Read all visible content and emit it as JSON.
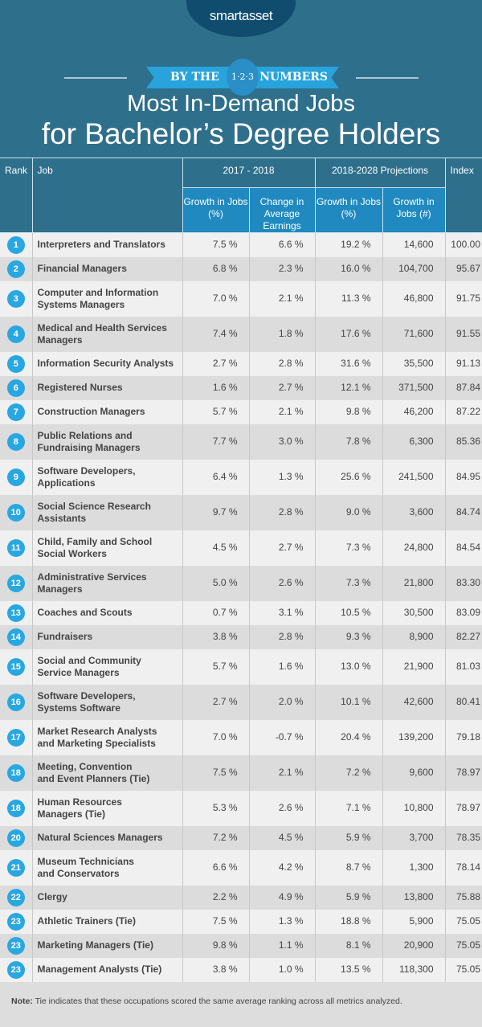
{
  "brand": {
    "logo_text": "smartasset",
    "accent": "#29a7e1",
    "header_bg": "#2089bf",
    "top_bg": "#2e6f8c"
  },
  "banner": {
    "left": "BY THE",
    "badge": "1·2·3",
    "right": "NUMBERS"
  },
  "title": {
    "line1": "Most In-Demand Jobs",
    "line2": "for Bachelor’s Degree Holders"
  },
  "table": {
    "headers": {
      "rank": "Rank",
      "job": "Job",
      "group1": "2017 - 2018",
      "group2": "2018-2028 Projections",
      "index": "Index",
      "c1": "Growth in Jobs (%)",
      "c2": "Change in Average Earnings",
      "c3": "Growth in Jobs (%)",
      "c4": "Growth in Jobs (#)"
    },
    "rows": [
      {
        "rank": "1",
        "job": "Interpreters and Translators",
        "c1": "7.5 %",
        "c2": "6.6 %",
        "c3": "19.2 %",
        "c4": "14,600",
        "index": "100.00"
      },
      {
        "rank": "2",
        "job": "Financial Managers",
        "c1": "6.8 %",
        "c2": "2.3 %",
        "c3": "16.0 %",
        "c4": "104,700",
        "index": "95.67"
      },
      {
        "rank": "3",
        "job": "Computer and Information\nSystems Managers",
        "c1": "7.0 %",
        "c2": "2.1 %",
        "c3": "11.3 %",
        "c4": "46,800",
        "index": "91.75"
      },
      {
        "rank": "4",
        "job": "Medical and Health Services\nManagers",
        "c1": "7.4 %",
        "c2": "1.8 %",
        "c3": "17.6 %",
        "c4": "71,600",
        "index": "91.55"
      },
      {
        "rank": "5",
        "job": "Information Security Analysts",
        "c1": "2.7 %",
        "c2": "2.8 %",
        "c3": "31.6 %",
        "c4": "35,500",
        "index": "91.13"
      },
      {
        "rank": "6",
        "job": "Registered Nurses",
        "c1": "1.6 %",
        "c2": "2.7 %",
        "c3": "12.1 %",
        "c4": "371,500",
        "index": "87.84"
      },
      {
        "rank": "7",
        "job": "Construction Managers",
        "c1": "5.7 %",
        "c2": "2.1 %",
        "c3": "9.8 %",
        "c4": "46,200",
        "index": "87.22"
      },
      {
        "rank": "8",
        "job": "Public Relations and\nFundraising Managers",
        "c1": "7.7 %",
        "c2": "3.0 %",
        "c3": "7.8 %",
        "c4": "6,300",
        "index": "85.36"
      },
      {
        "rank": "9",
        "job": "Software Developers,\nApplications",
        "c1": "6.4 %",
        "c2": "1.3 %",
        "c3": "25.6 %",
        "c4": "241,500",
        "index": "84.95"
      },
      {
        "rank": "10",
        "job": "Social Science Research\nAssistants",
        "c1": "9.7 %",
        "c2": "2.8 %",
        "c3": "9.0 %",
        "c4": "3,600",
        "index": "84.74"
      },
      {
        "rank": "11",
        "job": "Child, Family and School\nSocial Workers",
        "c1": "4.5 %",
        "c2": "2.7 %",
        "c3": "7.3 %",
        "c4": "24,800",
        "index": "84.54"
      },
      {
        "rank": "12",
        "job": "Administrative Services\nManagers",
        "c1": "5.0 %",
        "c2": "2.6 %",
        "c3": "7.3 %",
        "c4": "21,800",
        "index": "83.30"
      },
      {
        "rank": "13",
        "job": "Coaches and Scouts",
        "c1": "0.7 %",
        "c2": "3.1 %",
        "c3": "10.5 %",
        "c4": "30,500",
        "index": "83.09"
      },
      {
        "rank": "14",
        "job": "Fundraisers",
        "c1": "3.8 %",
        "c2": "2.8 %",
        "c3": "9.3 %",
        "c4": "8,900",
        "index": "82.27"
      },
      {
        "rank": "15",
        "job": "Social and Community\nService Managers",
        "c1": "5.7 %",
        "c2": "1.6 %",
        "c3": "13.0 %",
        "c4": "21,900",
        "index": "81.03"
      },
      {
        "rank": "16",
        "job": "Software Developers,\nSystems Software",
        "c1": "2.7 %",
        "c2": "2.0 %",
        "c3": "10.1 %",
        "c4": "42,600",
        "index": "80.41"
      },
      {
        "rank": "17",
        "job": "Market Research Analysts\nand Marketing Specialists",
        "c1": "7.0 %",
        "c2": "-0.7 %",
        "c3": "20.4 %",
        "c4": "139,200",
        "index": "79.18"
      },
      {
        "rank": "18",
        "job": "Meeting, Convention\nand Event Planners (Tie)",
        "c1": "7.5 %",
        "c2": "2.1 %",
        "c3": "7.2 %",
        "c4": "9,600",
        "index": "78.97"
      },
      {
        "rank": "18",
        "job": "Human Resources\nManagers (Tie)",
        "c1": "5.3 %",
        "c2": "2.6 %",
        "c3": "7.1 %",
        "c4": "10,800",
        "index": "78.97"
      },
      {
        "rank": "20",
        "job": "Natural Sciences Managers",
        "c1": "7.2 %",
        "c2": "4.5 %",
        "c3": "5.9 %",
        "c4": "3,700",
        "index": "78.35"
      },
      {
        "rank": "21",
        "job": "Museum Technicians\nand Conservators",
        "c1": "6.6 %",
        "c2": "4.2 %",
        "c3": "8.7 %",
        "c4": "1,300",
        "index": "78.14"
      },
      {
        "rank": "22",
        "job": "Clergy",
        "c1": "2.2 %",
        "c2": "4.9 %",
        "c3": "5.9 %",
        "c4": "13,800",
        "index": "75.88"
      },
      {
        "rank": "23",
        "job": "Athletic Trainers (Tie)",
        "c1": "7.5 %",
        "c2": "1.3 %",
        "c3": "18.8 %",
        "c4": "5,900",
        "index": "75.05"
      },
      {
        "rank": "23",
        "job": "Marketing Managers (Tie)",
        "c1": "9.8 %",
        "c2": "1.1 %",
        "c3": "8.1 %",
        "c4": "20,900",
        "index": "75.05"
      },
      {
        "rank": "23",
        "job": "Management Analysts (Tie)",
        "c1": "3.8 %",
        "c2": "1.0 %",
        "c3": "13.5 %",
        "c4": "118,300",
        "index": "75.05"
      }
    ]
  },
  "note": {
    "label": "Note:",
    "text": " Tie indicates that these occupations scored the same average ranking across all metrics analyzed."
  }
}
